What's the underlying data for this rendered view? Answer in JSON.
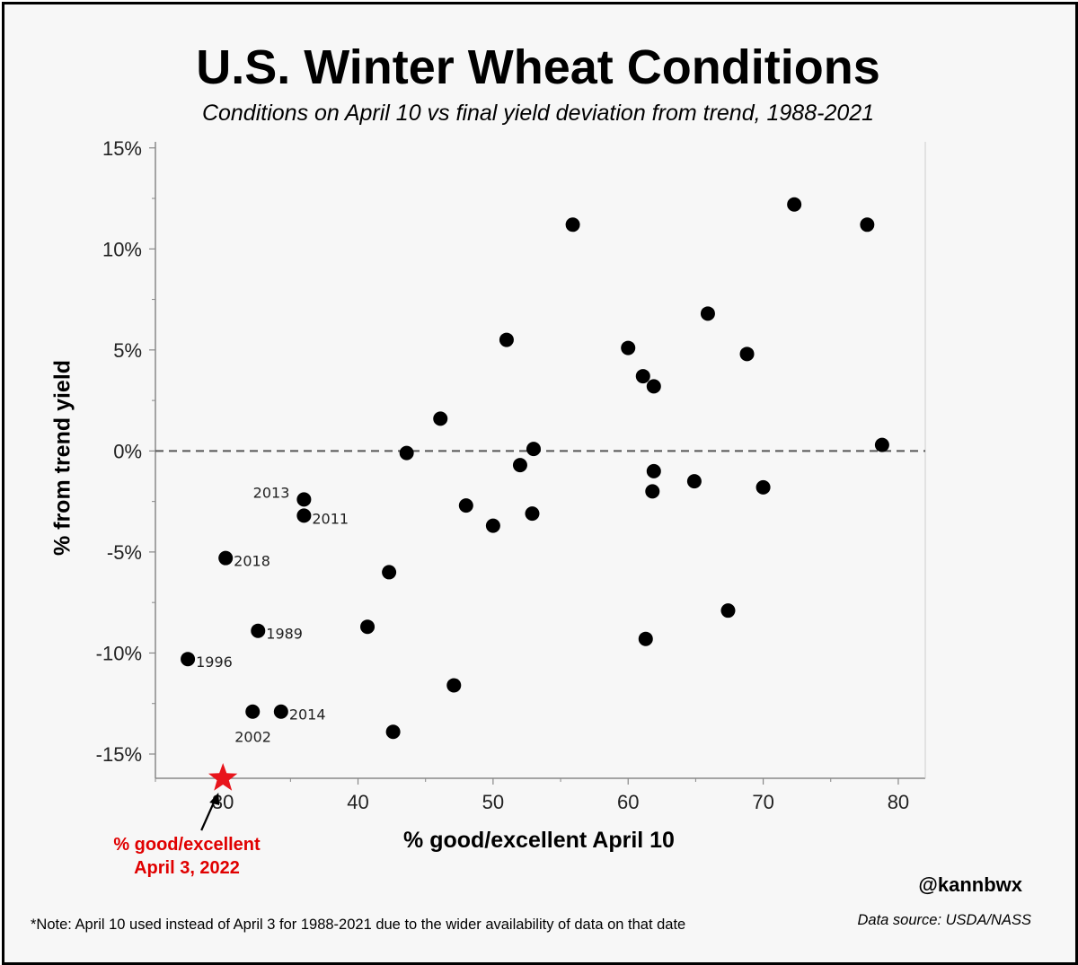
{
  "colors": {
    "point": "#000000",
    "highlight": "#e8141b",
    "reference_line": "#555555",
    "axis": "#888888"
  },
  "credit": {
    "handle": "@kannbwx",
    "note": "*Note: April 10 used instead of April 3 for 1988-2021 due to the wider availability of data on that date",
    "source": "Data source: USDA/NASS"
  },
  "chart_data": {
    "type": "scatter",
    "title": "U.S. Winter Wheat Conditions",
    "subtitle": "Conditions on April 10 vs final yield deviation from trend, 1988-2021",
    "xlabel": "% good/excellent April 10",
    "ylabel": "% from trend yield",
    "xlim": [
      25,
      82
    ],
    "ylim": [
      -16.2,
      15.3
    ],
    "x_ticks": [
      30,
      40,
      50,
      60,
      70,
      80
    ],
    "y_ticks": [
      15,
      10,
      5,
      0,
      -5,
      -10,
      -15
    ],
    "y_tick_labels": [
      "15%",
      "10%",
      "5%",
      "0%",
      "-5%",
      "-10%",
      "-15%"
    ],
    "grid": false,
    "reference_line": {
      "y": 0,
      "style": "dashed"
    },
    "points": [
      {
        "x": 36,
        "y": -2.4,
        "label": "2013"
      },
      {
        "x": 36,
        "y": -3.2,
        "label": "2011"
      },
      {
        "x": 30.2,
        "y": -5.3,
        "label": "2018"
      },
      {
        "x": 32.6,
        "y": -8.9,
        "label": "1989"
      },
      {
        "x": 27.4,
        "y": -10.3,
        "label": "1996"
      },
      {
        "x": 32.2,
        "y": -12.9,
        "label": "2002"
      },
      {
        "x": 34.3,
        "y": -12.9,
        "label": "2014"
      },
      {
        "x": 40.7,
        "y": -8.7
      },
      {
        "x": 42.3,
        "y": -6.0
      },
      {
        "x": 42.6,
        "y": -13.9
      },
      {
        "x": 43.6,
        "y": -0.1
      },
      {
        "x": 46.1,
        "y": 1.6
      },
      {
        "x": 47.1,
        "y": -11.6
      },
      {
        "x": 48.0,
        "y": -2.7
      },
      {
        "x": 50.0,
        "y": -3.7
      },
      {
        "x": 51.0,
        "y": 5.5
      },
      {
        "x": 52.0,
        "y": -0.7
      },
      {
        "x": 53.0,
        "y": 0.1
      },
      {
        "x": 52.9,
        "y": -3.1
      },
      {
        "x": 55.9,
        "y": 11.2
      },
      {
        "x": 60.0,
        "y": 5.1
      },
      {
        "x": 61.1,
        "y": 3.7
      },
      {
        "x": 61.9,
        "y": 3.2
      },
      {
        "x": 61.9,
        "y": -1.0
      },
      {
        "x": 61.8,
        "y": -2.0
      },
      {
        "x": 61.3,
        "y": -9.3
      },
      {
        "x": 64.9,
        "y": -1.5
      },
      {
        "x": 65.9,
        "y": 6.8
      },
      {
        "x": 67.4,
        "y": -7.9
      },
      {
        "x": 68.8,
        "y": 4.8
      },
      {
        "x": 70.0,
        "y": -1.8
      },
      {
        "x": 72.3,
        "y": 12.2
      },
      {
        "x": 77.7,
        "y": 11.2
      },
      {
        "x": 78.8,
        "y": 0.3
      }
    ],
    "highlight": {
      "x": 30,
      "y": -16.2,
      "marker": "star",
      "label_lines": [
        "% good/excellent",
        "April 3, 2022"
      ]
    }
  }
}
